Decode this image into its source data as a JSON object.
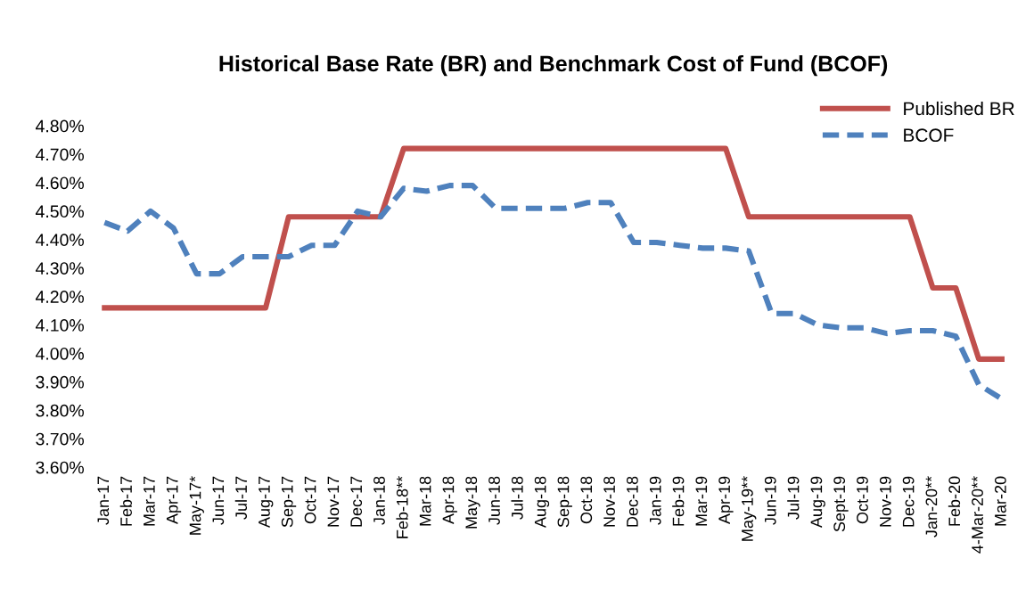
{
  "chart_data": {
    "type": "line",
    "title": "Historical Base Rate (BR) and Benchmark Cost of Fund (BCOF)",
    "categories": [
      "Jan-17",
      "Feb-17",
      "Mar-17",
      "Apr-17",
      "May-17*",
      "Jun-17",
      "Jul-17",
      "Aug-17",
      "Sep-17",
      "Oct-17",
      "Nov-17",
      "Dec-17",
      "Jan-18",
      "Feb-18**",
      "Mar-18",
      "Apr-18",
      "May-18",
      "Jun-18",
      "Jul-18",
      "Aug-18",
      "Sep-18",
      "Oct-18",
      "Nov-18",
      "Dec-18",
      "Jan-19",
      "Feb-19",
      "Mar-19",
      "Apr-19",
      "May-19**",
      "Jun-19",
      "Jul-19",
      "Aug-19",
      "Sept-19",
      "Oct-19",
      "Nov-19",
      "Dec-19",
      "Jan-20**",
      "Feb-20",
      "4-Mar-20**",
      "Mar-20"
    ],
    "series": [
      {
        "name": "Published BR",
        "color": "#c0504d",
        "line_style": "solid",
        "values": [
          4.16,
          4.16,
          4.16,
          4.16,
          4.16,
          4.16,
          4.16,
          4.16,
          4.48,
          4.48,
          4.48,
          4.48,
          4.48,
          4.72,
          4.72,
          4.72,
          4.72,
          4.72,
          4.72,
          4.72,
          4.72,
          4.72,
          4.72,
          4.72,
          4.72,
          4.72,
          4.72,
          4.72,
          4.48,
          4.48,
          4.48,
          4.48,
          4.48,
          4.48,
          4.48,
          4.48,
          4.23,
          4.23,
          3.98,
          3.98
        ]
      },
      {
        "name": "BCOF",
        "color": "#4f81bd",
        "line_style": "dashed",
        "values": [
          4.46,
          4.43,
          4.5,
          4.44,
          4.28,
          4.28,
          4.34,
          4.34,
          4.34,
          4.38,
          4.38,
          4.5,
          4.48,
          4.58,
          4.57,
          4.59,
          4.59,
          4.51,
          4.51,
          4.51,
          4.51,
          4.53,
          4.53,
          4.39,
          4.39,
          4.38,
          4.37,
          4.37,
          4.36,
          4.14,
          4.14,
          4.1,
          4.09,
          4.09,
          4.07,
          4.08,
          4.08,
          4.06,
          3.89,
          3.84
        ]
      }
    ],
    "ylim": [
      3.6,
      4.8
    ],
    "yticks": [
      {
        "value": 3.6,
        "label": "3.60%"
      },
      {
        "value": 3.7,
        "label": "3.70%"
      },
      {
        "value": 3.8,
        "label": "3.80%"
      },
      {
        "value": 3.9,
        "label": "3.90%"
      },
      {
        "value": 4.0,
        "label": "4.00%"
      },
      {
        "value": 4.1,
        "label": "4.10%"
      },
      {
        "value": 4.2,
        "label": "4.20%"
      },
      {
        "value": 4.3,
        "label": "4.30%"
      },
      {
        "value": 4.4,
        "label": "4.40%"
      },
      {
        "value": 4.5,
        "label": "4.50%"
      },
      {
        "value": 4.6,
        "label": "4.60%"
      },
      {
        "value": 4.7,
        "label": "4.70%"
      },
      {
        "value": 4.8,
        "label": "4.80%"
      }
    ],
    "legend": "top right",
    "grid": false
  }
}
